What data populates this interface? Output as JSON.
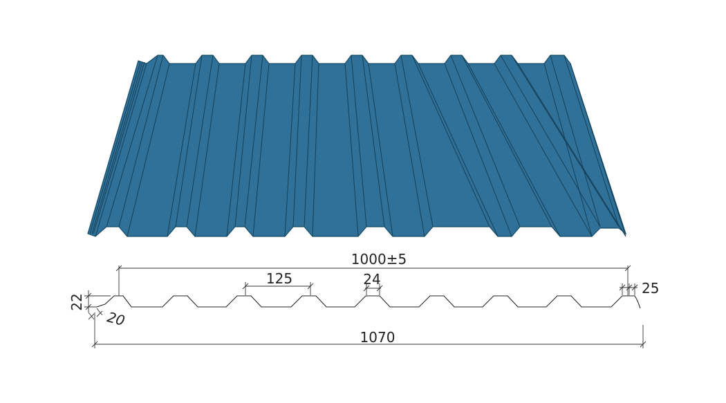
{
  "colors": {
    "sheet_fill": "#2f7199",
    "sheet_stroke": "#164a66",
    "rib_dark": "#255f83",
    "line": "#222222"
  },
  "dimensions": {
    "overall_width": "1070",
    "effective_width": "1000±5",
    "rib_pitch": "125",
    "crest_width": "24",
    "edge_crest": "25",
    "profile_height": "22",
    "side_angle": "20"
  }
}
